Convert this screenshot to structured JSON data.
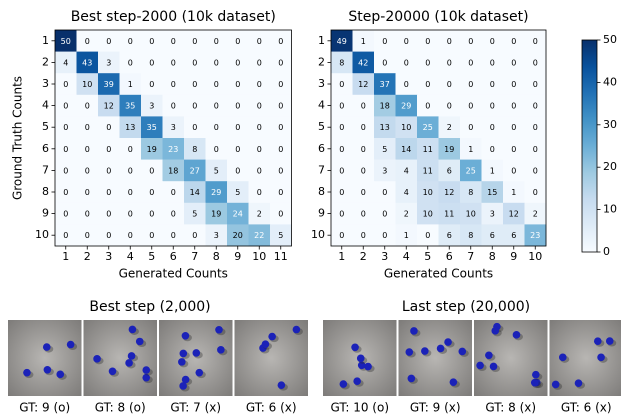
{
  "chart_data": [
    {
      "type": "heatmap",
      "title": "Best step-2000 (10k dataset)",
      "xlabel": "Generated Counts",
      "ylabel": "Ground Truth Counts",
      "categories": [
        1,
        2,
        3,
        4,
        5,
        6,
        7,
        8,
        9,
        10,
        11
      ],
      "rows": [
        1,
        2,
        3,
        4,
        5,
        6,
        7,
        8,
        9,
        10
      ],
      "values": [
        [
          50,
          0,
          0,
          0,
          0,
          0,
          0,
          0,
          0,
          0,
          0
        ],
        [
          4,
          43,
          3,
          0,
          0,
          0,
          0,
          0,
          0,
          0,
          0
        ],
        [
          0,
          10,
          39,
          1,
          0,
          0,
          0,
          0,
          0,
          0,
          0
        ],
        [
          0,
          0,
          12,
          35,
          3,
          0,
          0,
          0,
          0,
          0,
          0
        ],
        [
          0,
          0,
          0,
          13,
          35,
          3,
          0,
          0,
          0,
          0,
          0
        ],
        [
          0,
          0,
          0,
          0,
          19,
          23,
          8,
          0,
          0,
          0,
          0
        ],
        [
          0,
          0,
          0,
          0,
          0,
          18,
          27,
          5,
          0,
          0,
          0
        ],
        [
          0,
          0,
          0,
          0,
          0,
          0,
          14,
          29,
          5,
          0,
          0
        ],
        [
          0,
          0,
          0,
          0,
          0,
          0,
          5,
          19,
          24,
          2,
          0
        ],
        [
          0,
          0,
          0,
          0,
          0,
          0,
          0,
          3,
          20,
          22,
          5
        ]
      ],
      "colormap": "Blues",
      "zlim": [
        0,
        50
      ],
      "zticks": [
        0,
        10,
        20,
        30,
        40,
        50
      ]
    },
    {
      "type": "heatmap",
      "title": "Step-20000 (10k dataset)",
      "xlabel": "Generated Counts",
      "categories": [
        1,
        2,
        3,
        4,
        5,
        6,
        7,
        8,
        9,
        10
      ],
      "rows": [
        1,
        2,
        3,
        4,
        5,
        6,
        7,
        8,
        9,
        10
      ],
      "values": [
        [
          49,
          1,
          0,
          0,
          0,
          0,
          0,
          0,
          0,
          0
        ],
        [
          8,
          42,
          0,
          0,
          0,
          0,
          0,
          0,
          0,
          0
        ],
        [
          0,
          12,
          37,
          0,
          0,
          0,
          0,
          0,
          0,
          0
        ],
        [
          0,
          0,
          18,
          29,
          0,
          0,
          0,
          0,
          0,
          0
        ],
        [
          0,
          0,
          13,
          10,
          25,
          2,
          0,
          0,
          0,
          0
        ],
        [
          0,
          0,
          5,
          14,
          11,
          19,
          1,
          0,
          0,
          0
        ],
        [
          0,
          0,
          3,
          4,
          11,
          6,
          25,
          1,
          0,
          0
        ],
        [
          0,
          0,
          0,
          4,
          10,
          12,
          8,
          15,
          1,
          0
        ],
        [
          0,
          0,
          0,
          2,
          10,
          11,
          10,
          3,
          12,
          2
        ],
        [
          0,
          0,
          0,
          1,
          0,
          6,
          8,
          6,
          6,
          23
        ]
      ],
      "colormap": "Blues",
      "zlim": [
        0,
        50
      ]
    }
  ],
  "gallery": [
    {
      "title": "Best step (2,000)",
      "captions": [
        "GT: 9 (o)",
        "GT: 8 (o)",
        "GT: 7 (x)",
        "GT: 6 (x)"
      ]
    },
    {
      "title": "Last step (20,000)",
      "captions": [
        "GT: 10 (o)",
        "GT: 9 (x)",
        "GT: 8 (x)",
        "GT: 6 (x)"
      ]
    }
  ]
}
